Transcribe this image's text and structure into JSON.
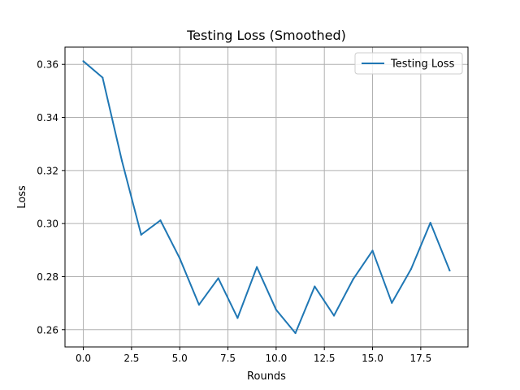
{
  "chart_data": {
    "type": "line",
    "title": "Testing Loss (Smoothed)",
    "xlabel": "Rounds",
    "ylabel": "Loss",
    "xlim": [
      -0.95,
      19.95
    ],
    "ylim": [
      0.2535,
      0.3665
    ],
    "xticks": [
      0.0,
      2.5,
      5.0,
      7.5,
      10.0,
      12.5,
      15.0,
      17.5
    ],
    "xtick_labels": [
      "0.0",
      "2.5",
      "5.0",
      "7.5",
      "10.0",
      "12.5",
      "15.0",
      "17.5"
    ],
    "yticks": [
      0.26,
      0.28,
      0.3,
      0.32,
      0.34,
      0.36
    ],
    "ytick_labels": [
      "0.26",
      "0.28",
      "0.30",
      "0.32",
      "0.34",
      "0.36"
    ],
    "grid": true,
    "legend_position": "top-right",
    "series": [
      {
        "name": "Testing Loss",
        "color": "#1f77b4",
        "x": [
          0,
          1,
          2,
          3,
          4,
          5,
          6,
          7,
          8,
          9,
          10,
          11,
          12,
          13,
          14,
          15,
          16,
          17,
          18,
          19
        ],
        "y": [
          0.3612,
          0.355,
          0.3237,
          0.2958,
          0.3012,
          0.2869,
          0.2694,
          0.2794,
          0.2644,
          0.2836,
          0.2675,
          0.2587,
          0.2763,
          0.2653,
          0.2791,
          0.2898,
          0.2701,
          0.2829,
          0.3003,
          0.2823
        ]
      }
    ]
  }
}
